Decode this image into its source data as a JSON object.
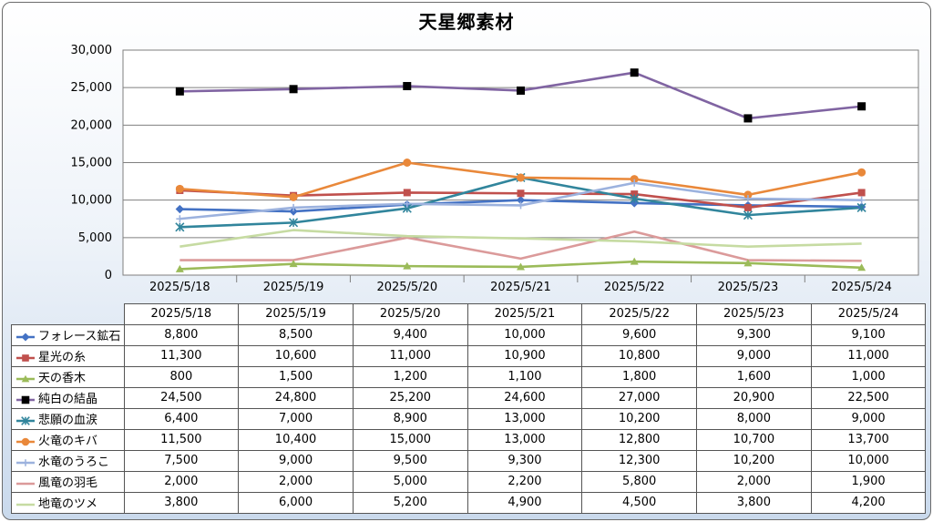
{
  "chart_data": {
    "type": "line",
    "title": "天星郷素材",
    "categories": [
      "2025/5/18",
      "2025/5/19",
      "2025/5/20",
      "2025/5/21",
      "2025/5/22",
      "2025/5/23",
      "2025/5/24"
    ],
    "ylim": [
      0,
      30000
    ],
    "yticks": [
      0,
      5000,
      10000,
      15000,
      20000,
      25000,
      30000
    ],
    "ytick_labels": [
      "0",
      "5,000",
      "10,000",
      "15,000",
      "20,000",
      "25,000",
      "30,000"
    ],
    "grid": true,
    "legend": "data-table",
    "series": [
      {
        "name": "フォレース鉱石",
        "color": "#4472c4",
        "marker": "diamond",
        "values": [
          8800,
          8500,
          9400,
          10000,
          9600,
          9300,
          9100
        ],
        "labels": [
          "8,800",
          "8,500",
          "9,400",
          "10,000",
          "9,600",
          "9,300",
          "9,100"
        ]
      },
      {
        "name": "星光の糸",
        "color": "#c0504d",
        "marker": "square",
        "values": [
          11300,
          10600,
          11000,
          10900,
          10800,
          9000,
          11000
        ],
        "labels": [
          "11,300",
          "10,600",
          "11,000",
          "10,900",
          "10,800",
          "9,000",
          "11,000"
        ]
      },
      {
        "name": "天の香木",
        "color": "#9bbb59",
        "marker": "triangle",
        "values": [
          800,
          1500,
          1200,
          1100,
          1800,
          1600,
          1000
        ],
        "labels": [
          "800",
          "1,500",
          "1,200",
          "1,100",
          "1,800",
          "1,600",
          "1,000"
        ]
      },
      {
        "name": "純白の結晶",
        "color": "#8064a2",
        "marker": "blacksquare",
        "values": [
          24500,
          24800,
          25200,
          24600,
          27000,
          20900,
          22500
        ],
        "labels": [
          "24,500",
          "24,800",
          "25,200",
          "24,600",
          "27,000",
          "20,900",
          "22,500"
        ]
      },
      {
        "name": "悲願の血涙",
        "color": "#31859c",
        "marker": "star",
        "values": [
          6400,
          7000,
          8900,
          13000,
          10200,
          8000,
          9000
        ],
        "labels": [
          "6,400",
          "7,000",
          "8,900",
          "13,000",
          "10,200",
          "8,000",
          "9,000"
        ]
      },
      {
        "name": "火竜のキバ",
        "color": "#e9883a",
        "marker": "circle",
        "values": [
          11500,
          10400,
          15000,
          13000,
          12800,
          10700,
          13700
        ],
        "labels": [
          "11,500",
          "10,400",
          "15,000",
          "13,000",
          "12,800",
          "10,700",
          "13,700"
        ]
      },
      {
        "name": "水竜のうろこ",
        "color": "#9cb2de",
        "marker": "plus",
        "values": [
          7500,
          9000,
          9500,
          9300,
          12300,
          10200,
          10000
        ],
        "labels": [
          "7,500",
          "9,000",
          "9,500",
          "9,300",
          "12,300",
          "10,200",
          "10,000"
        ]
      },
      {
        "name": "風竜の羽毛",
        "color": "#db9a9a",
        "marker": "none",
        "values": [
          2000,
          2000,
          5000,
          2200,
          5800,
          2000,
          1900
        ],
        "labels": [
          "2,000",
          "2,000",
          "5,000",
          "2,200",
          "5,800",
          "2,000",
          "1,900"
        ]
      },
      {
        "name": "地竜のツメ",
        "color": "#c6dba2",
        "marker": "none",
        "values": [
          3800,
          6000,
          5200,
          4900,
          4500,
          3800,
          4200
        ],
        "labels": [
          "3,800",
          "6,000",
          "5,200",
          "4,900",
          "4,500",
          "3,800",
          "4,200"
        ]
      }
    ]
  }
}
